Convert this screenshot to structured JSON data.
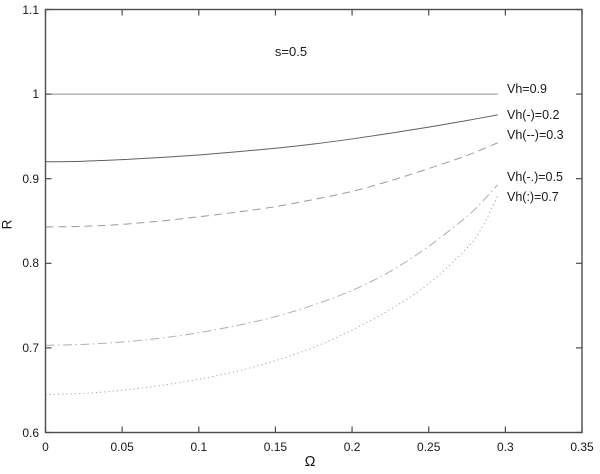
{
  "figure": {
    "background": "#ffffff",
    "axis_color": "#4d4d4d",
    "text_color": "#1a1a1a"
  },
  "chart_data": {
    "type": "line",
    "title": "s=0.5",
    "xlabel": "Ω",
    "ylabel": "R",
    "xlim": [
      0,
      0.35
    ],
    "ylim": [
      0.6,
      1.1
    ],
    "grid": false,
    "x_ticks": [
      0,
      0.05,
      0.1,
      0.15,
      0.2,
      0.25,
      0.3,
      0.35
    ],
    "x_tick_labels": [
      "0",
      "0.05",
      "0.1",
      "0.15",
      "0.2",
      "0.25",
      "0.3",
      "0.35"
    ],
    "y_ticks": [
      0.6,
      0.7,
      0.8,
      0.9,
      1.0,
      1.1
    ],
    "y_tick_labels": [
      "0.6",
      "0.7",
      "0.8",
      "0.9",
      "1",
      "1.1"
    ],
    "legend_position": "annotations-inside-right",
    "series": [
      {
        "name": "Vh=0.9",
        "vh": 0.9,
        "style": "solid",
        "color": "#8f8f8f",
        "width": 1,
        "points": [
          [
            0,
            1.0
          ],
          [
            0.295,
            1.0
          ]
        ]
      },
      {
        "name": "Vh(-)=0.2",
        "vh": 0.2,
        "style": "solid",
        "color": "#606060",
        "width": 1,
        "points": [
          [
            0,
            0.92
          ],
          [
            0.025,
            0.9207
          ],
          [
            0.05,
            0.9225
          ],
          [
            0.075,
            0.925
          ],
          [
            0.1,
            0.928
          ],
          [
            0.125,
            0.9318
          ],
          [
            0.15,
            0.936
          ],
          [
            0.175,
            0.941
          ],
          [
            0.2,
            0.947
          ],
          [
            0.225,
            0.9537
          ],
          [
            0.25,
            0.961
          ],
          [
            0.275,
            0.9688
          ],
          [
            0.295,
            0.9755
          ]
        ]
      },
      {
        "name": "Vh(--)=0.3",
        "vh": 0.3,
        "style": "dashed",
        "color": "#9b9b9b",
        "width": 1,
        "points": [
          [
            0,
            0.843
          ],
          [
            0.025,
            0.8437
          ],
          [
            0.05,
            0.846
          ],
          [
            0.075,
            0.85
          ],
          [
            0.1,
            0.855
          ],
          [
            0.125,
            0.8605
          ],
          [
            0.15,
            0.867
          ],
          [
            0.175,
            0.8755
          ],
          [
            0.2,
            0.885
          ],
          [
            0.225,
            0.8975
          ],
          [
            0.25,
            0.912
          ],
          [
            0.275,
            0.9275
          ],
          [
            0.295,
            0.9425
          ]
        ]
      },
      {
        "name": "Vh(-.)=0.5",
        "vh": 0.5,
        "style": "dashdot",
        "color": "#afafaf",
        "width": 1,
        "points": [
          [
            0,
            0.703
          ],
          [
            0.025,
            0.7042
          ],
          [
            0.05,
            0.707
          ],
          [
            0.075,
            0.7115
          ],
          [
            0.1,
            0.718
          ],
          [
            0.125,
            0.7265
          ],
          [
            0.15,
            0.737
          ],
          [
            0.175,
            0.7508
          ],
          [
            0.2,
            0.768
          ],
          [
            0.225,
            0.7905
          ],
          [
            0.25,
            0.82
          ],
          [
            0.275,
            0.8555
          ],
          [
            0.285,
            0.873
          ],
          [
            0.295,
            0.893
          ]
        ]
      },
      {
        "name": "Vh(:)=0.7",
        "vh": 0.7,
        "style": "dotted",
        "color": "#a5a5a5",
        "width": 1,
        "points": [
          [
            0,
            0.645
          ],
          [
            0.025,
            0.6462
          ],
          [
            0.05,
            0.65
          ],
          [
            0.075,
            0.6555
          ],
          [
            0.1,
            0.663
          ],
          [
            0.125,
            0.6725
          ],
          [
            0.15,
            0.685
          ],
          [
            0.175,
            0.7008
          ],
          [
            0.2,
            0.721
          ],
          [
            0.225,
            0.7455
          ],
          [
            0.25,
            0.776
          ],
          [
            0.275,
            0.818
          ],
          [
            0.285,
            0.843
          ],
          [
            0.295,
            0.88
          ]
        ]
      }
    ],
    "annotations": [
      {
        "text": "s=0.5",
        "x": 0.16,
        "y": 1.05,
        "role": "title"
      },
      {
        "text": "Vh=0.9",
        "x": 0.301,
        "y": 1.004,
        "role": "curve-label"
      },
      {
        "text": "Vh(-)=0.2",
        "x": 0.301,
        "y": 0.974,
        "role": "curve-label"
      },
      {
        "text": "Vh(--)=0.3",
        "x": 0.301,
        "y": 0.95,
        "role": "curve-label"
      },
      {
        "text": "Vh(-.)=0.5",
        "x": 0.301,
        "y": 0.9,
        "role": "curve-label"
      },
      {
        "text": "Vh(:)=0.7",
        "x": 0.301,
        "y": 0.877,
        "role": "curve-label"
      }
    ]
  }
}
